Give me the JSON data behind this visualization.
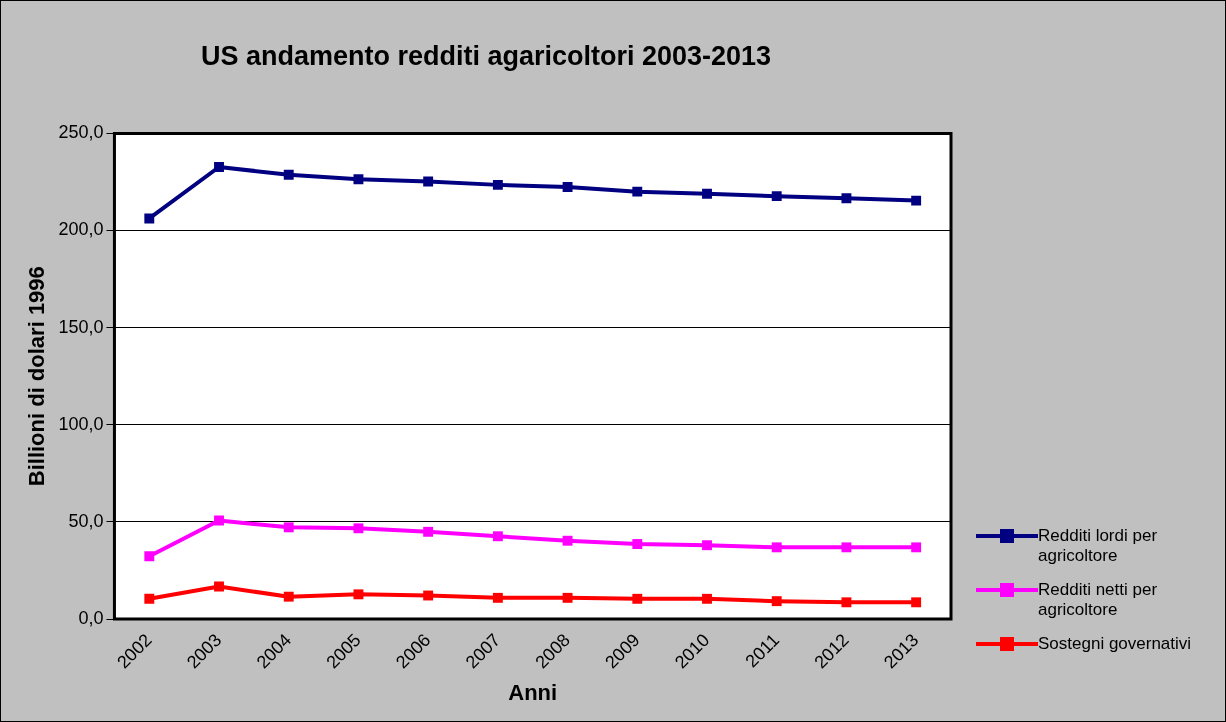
{
  "chart_data": {
    "type": "line",
    "title": "US andamento redditi agaricoltori 2003-2013",
    "xlabel": "Anni",
    "ylabel": "Billioni di dolari 1996",
    "categories": [
      "2002",
      "2003",
      "2004",
      "2005",
      "2006",
      "2007",
      "2008",
      "2009",
      "2010",
      "2011",
      "2012",
      "2013"
    ],
    "series": [
      {
        "name": "Redditi lordi per agricoltore",
        "color": "#000080",
        "values": [
          206.2,
          232.7,
          228.7,
          226.4,
          225.2,
          223.5,
          222.4,
          220.0,
          218.9,
          217.7,
          216.6,
          215.4
        ]
      },
      {
        "name": "Redditi netti per agricoltore",
        "color": "#ff00ff",
        "values": [
          32.3,
          50.7,
          47.2,
          46.7,
          44.9,
          42.6,
          40.3,
          38.6,
          38.0,
          36.9,
          36.9,
          36.9
        ]
      },
      {
        "name": "Sostegni governativi",
        "color": "#ff0000",
        "values": [
          10.4,
          16.7,
          11.5,
          12.7,
          12.1,
          10.9,
          10.9,
          10.4,
          10.4,
          9.2,
          8.6,
          8.6
        ]
      }
    ],
    "ylim": [
      0,
      250
    ],
    "yticks": [
      {
        "value": 0,
        "label": "0,0"
      },
      {
        "value": 50,
        "label": "50,0"
      },
      {
        "value": 100,
        "label": "100,0"
      },
      {
        "value": 150,
        "label": "150,0"
      },
      {
        "value": 200,
        "label": "200,0"
      },
      {
        "value": 250,
        "label": "250,0"
      }
    ],
    "grid": "y",
    "legend": "bottom right",
    "marker": "square",
    "line_style": "solid"
  }
}
